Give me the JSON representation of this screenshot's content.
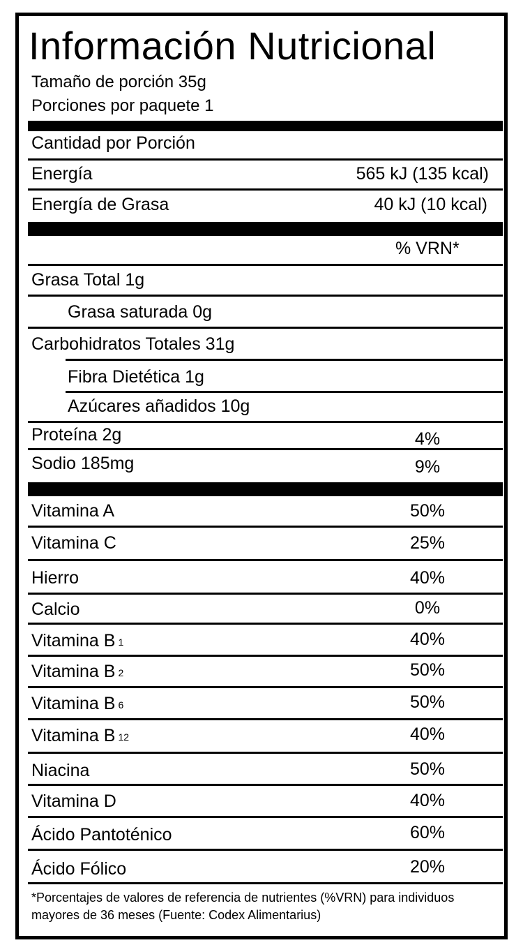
{
  "title": "Información Nutricional",
  "serving_size": "Tamaño de porción 35g",
  "servings_per_package": "Porciones por paquete 1",
  "amount_per_serving": "Cantidad por Porción",
  "energy": {
    "label": "Energía",
    "value": "565 kJ (135 kcal)"
  },
  "fat_energy": {
    "label": "Energía de Grasa",
    "value": "40 kJ (10 kcal)"
  },
  "vrn_header": "% VRN*",
  "nutrients": [
    {
      "label": "Grasa Total  1g",
      "pct": ""
    },
    {
      "label": "Grasa saturada  0g",
      "pct": ""
    },
    {
      "label": "Carbohidratos Totales  31g",
      "pct": ""
    },
    {
      "label": "Fibra Dietética  1g",
      "pct": ""
    },
    {
      "label": "Azúcares añadidos  10g",
      "pct": ""
    },
    {
      "label": "Proteína  2g",
      "pct": "4%"
    },
    {
      "label": "Sodio  185mg",
      "pct": "9%"
    }
  ],
  "vitamins": [
    {
      "label": "Vitamina A",
      "sub": "",
      "pct": "50%"
    },
    {
      "label": "Vitamina C",
      "sub": "",
      "pct": "25%"
    },
    {
      "label": "Hierro",
      "sub": "",
      "pct": "40%"
    },
    {
      "label": "Calcio",
      "sub": "",
      "pct": "0%"
    },
    {
      "label": "Vitamina B",
      "sub": "1",
      "pct": "40%"
    },
    {
      "label": "Vitamina B",
      "sub": "2",
      "pct": "50%"
    },
    {
      "label": "Vitamina B",
      "sub": "6",
      "pct": "50%"
    },
    {
      "label": "Vitamina B",
      "sub": "12",
      "pct": "40%"
    },
    {
      "label": "Niacina",
      "sub": "",
      "pct": "50%"
    },
    {
      "label": "Vitamina D",
      "sub": "",
      "pct": "40%"
    },
    {
      "label": "Ácido Pantoténico",
      "sub": "",
      "pct": "60%"
    },
    {
      "label": "Ácido Fólico",
      "sub": "",
      "pct": "20%"
    }
  ],
  "footnote": "*Porcentajes de valores de referencia de nutrientes (%VRN) para individuos mayores de 36 meses (Fuente: Codex Alimentarius)"
}
